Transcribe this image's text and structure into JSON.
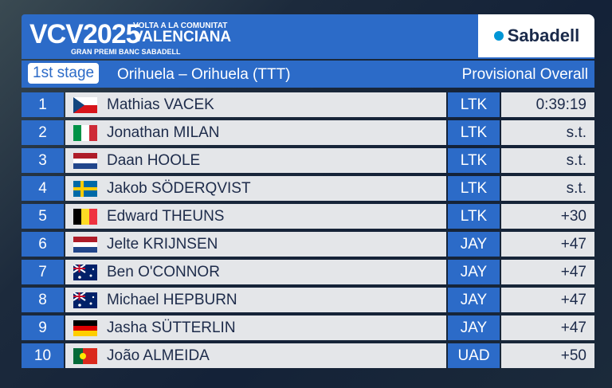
{
  "header": {
    "logo": "VCV2025",
    "race_name_line1": "VOLTA A LA COMUNITAT",
    "race_name_line2": "VALENCIANA",
    "race_subtitle": "GRAN PREMI BANC SABADELL",
    "sponsor": "Sabadell"
  },
  "stage": {
    "label": "1st stage",
    "route": "Orihuela – Orihuela (TTT)",
    "classification": "Provisional Overall"
  },
  "table": {
    "rows": [
      {
        "rank": 1,
        "rider": "Mathias VACEK",
        "team": "LTK",
        "time": "0:39:19"
      },
      {
        "rank": 2,
        "rider": "Jonathan MILAN",
        "team": "LTK",
        "time": "s.t."
      },
      {
        "rank": 3,
        "rider": "Daan HOOLE",
        "team": "LTK",
        "time": "s.t."
      },
      {
        "rank": 4,
        "rider": "Jakob SÖDERQVIST",
        "team": "LTK",
        "time": "s.t."
      },
      {
        "rank": 5,
        "rider": "Edward THEUNS",
        "team": "LTK",
        "time": "+30"
      },
      {
        "rank": 6,
        "rider": "Jelte KRIJNSEN",
        "team": "JAY",
        "time": "+47"
      },
      {
        "rank": 7,
        "rider": "Ben O'CONNOR",
        "team": "JAY",
        "time": "+47"
      },
      {
        "rank": 8,
        "rider": "Michael HEPBURN",
        "team": "JAY",
        "time": "+47"
      },
      {
        "rank": 9,
        "rider": "Jasha SÜTTERLIN",
        "team": "JAY",
        "time": "+47"
      },
      {
        "rank": 10,
        "rider": "João ALMEIDA",
        "team": "UAD",
        "time": "+50"
      }
    ]
  }
}
